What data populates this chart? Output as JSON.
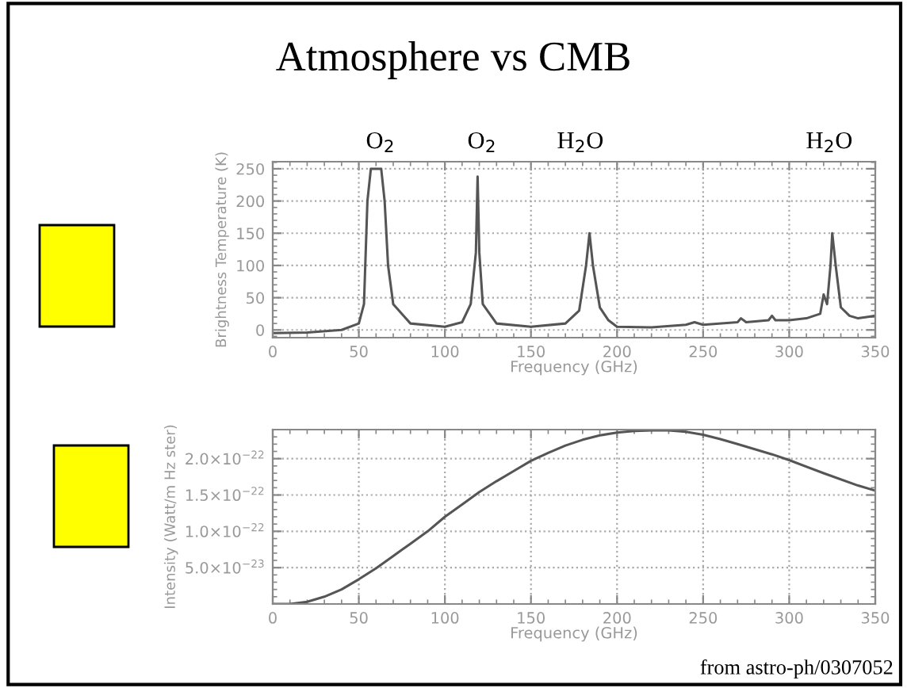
{
  "chart_data": [
    {
      "type": "line",
      "title": "Atmosphere vs CMB",
      "xlabel": "Frequency (GHz)",
      "ylabel": "Brightness Temperature (K)",
      "color": "#555555",
      "grid": true,
      "x": [
        0,
        20,
        40,
        50,
        53,
        55,
        57,
        63,
        65,
        67,
        70,
        80,
        100,
        110,
        115,
        118,
        119,
        120,
        122,
        130,
        150,
        170,
        178,
        182,
        184,
        186,
        190,
        195,
        200,
        220,
        240,
        245,
        250,
        270,
        272,
        275,
        288,
        290,
        292,
        300,
        310,
        318,
        320,
        322,
        324,
        325,
        327,
        330,
        335,
        340,
        345,
        350
      ],
      "values": [
        -5,
        -4,
        0,
        10,
        40,
        200,
        250,
        250,
        200,
        100,
        40,
        10,
        5,
        12,
        40,
        120,
        238,
        120,
        40,
        10,
        5,
        10,
        30,
        100,
        150,
        100,
        35,
        15,
        5,
        4,
        8,
        12,
        8,
        12,
        18,
        12,
        15,
        22,
        15,
        15,
        18,
        25,
        55,
        40,
        100,
        150,
        100,
        35,
        22,
        18,
        20,
        22
      ],
      "xlim": [
        0,
        350
      ],
      "xticks": [
        0,
        50,
        100,
        150,
        200,
        250,
        300,
        350
      ],
      "ylim": [
        -12,
        261
      ],
      "yticks": [
        0,
        50,
        100,
        150,
        200,
        250
      ],
      "annotations": [
        "O$_{2}$",
        "O$_{2}$",
        "H$_{2}$O",
        "H$_{2}$O"
      ]
    },
    {
      "type": "line",
      "xlabel": "Frequency (GHz)",
      "ylabel": "Intensity (Watt/m Hz ster)",
      "color": "#555555",
      "grid": true,
      "x": [
        0,
        10,
        20,
        30,
        40,
        50,
        60,
        70,
        80,
        90,
        100,
        110,
        120,
        130,
        140,
        150,
        160,
        170,
        180,
        190,
        200,
        210,
        220,
        230,
        240,
        250,
        260,
        270,
        280,
        290,
        300,
        320,
        340,
        350
      ],
      "values": [
        0,
        0,
        3e-24,
        1e-23,
        2e-23,
        3.4e-23,
        4.9e-23,
        6.6e-23,
        8.3e-23,
        1e-22,
        1.2e-22,
        1.37e-22,
        1.54e-22,
        1.69e-22,
        1.83e-22,
        1.97e-22,
        2.08e-22,
        2.18e-22,
        2.26e-22,
        2.32e-22,
        2.36e-22,
        2.38e-22,
        2.39e-22,
        2.39e-22,
        2.37e-22,
        2.33e-22,
        2.27e-22,
        2.2e-22,
        2.13e-22,
        2.06e-22,
        1.98e-22,
        1.8e-22,
        1.63e-22,
        1.56e-22
      ],
      "xlim": [
        0,
        350
      ],
      "xticks": [
        0,
        50,
        100,
        150,
        200,
        250,
        300,
        350
      ],
      "ylim": [
        0,
        2.4e-22
      ],
      "yticks": [
        {
          "value": 5e-23,
          "label": "5.0×10$^{−23}$"
        },
        {
          "value": 1e-22,
          "label": "1.0×10$^{−22}$"
        },
        {
          "value": 1.5e-22,
          "label": "1.5×10$^{−22}$"
        },
        {
          "value": 2e-22,
          "label": "2.0×10$^{−22}$"
        }
      ],
      "annotations": [
        "from astro-ph/0307052"
      ]
    }
  ]
}
